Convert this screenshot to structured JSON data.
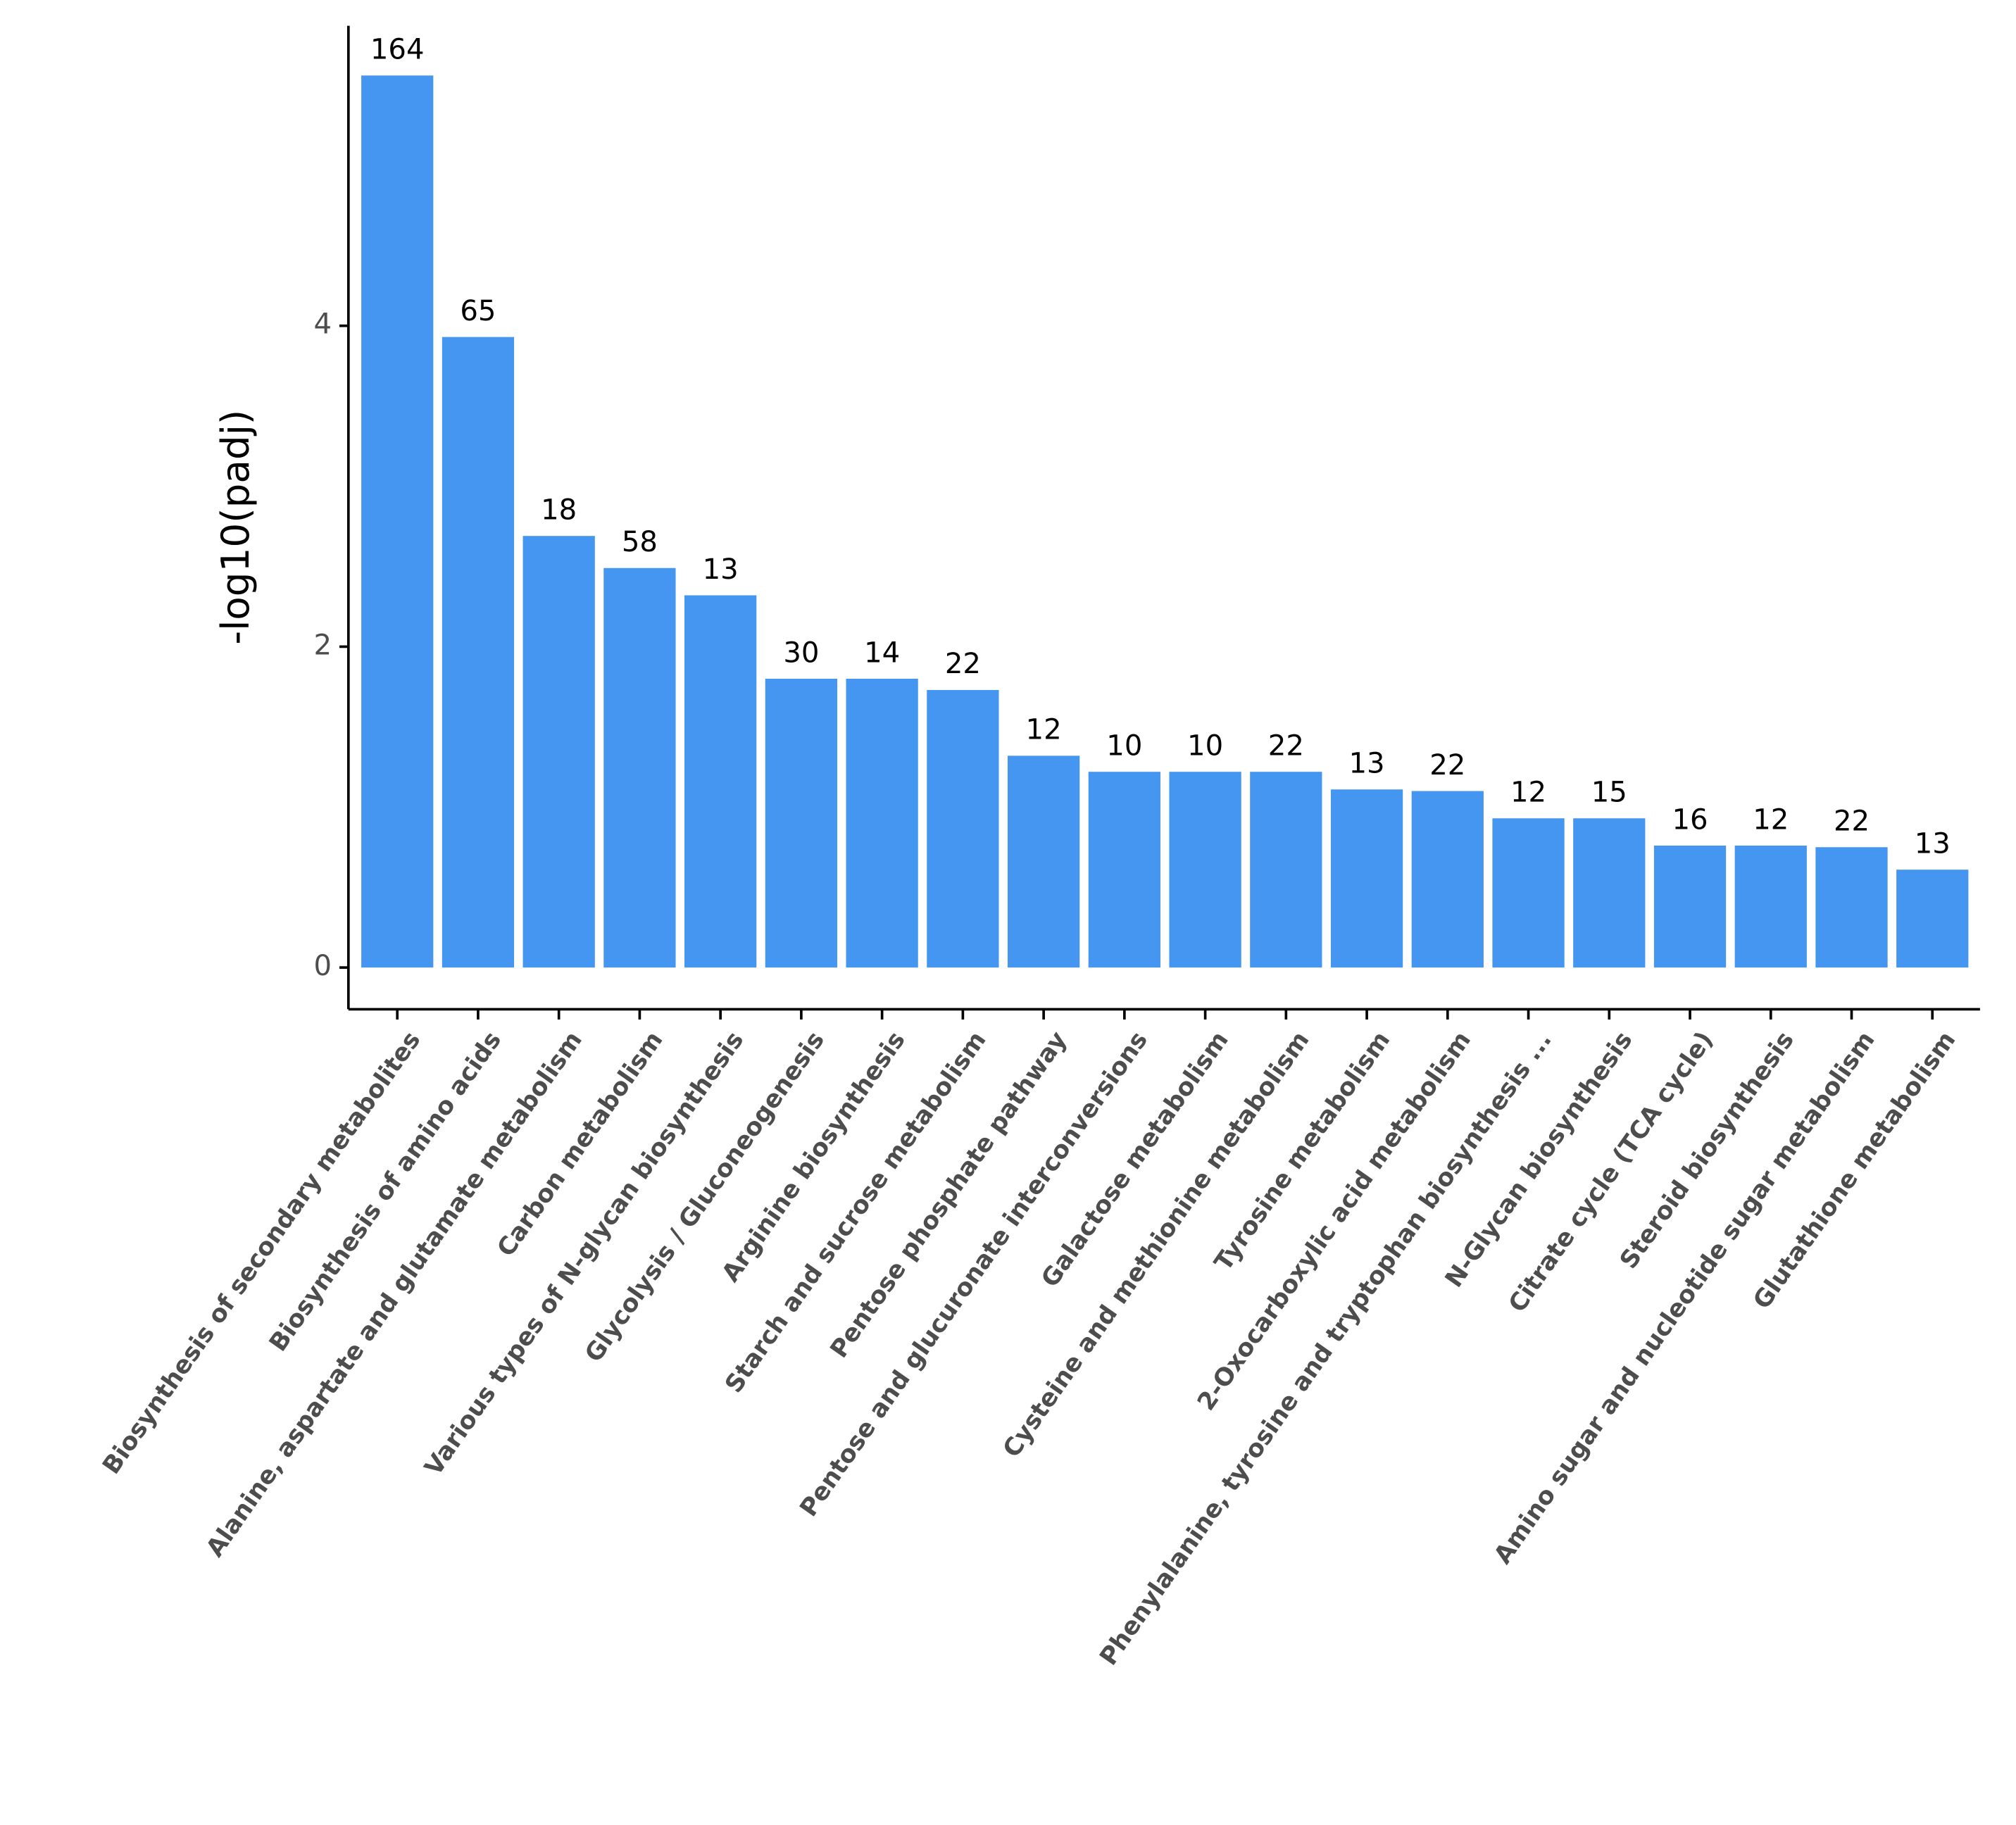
{
  "chart_data": {
    "type": "bar",
    "y_label": "-log10(padj)",
    "categories": [
      "Biosynthesis of secondary metabolites",
      "Biosynthesis of amino acids",
      "Alanine, aspartate and glutamate metabolism",
      "Carbon metabolism",
      "Various types of N-glycan biosynthesis",
      "Glycolysis / Gluconeogenesis",
      "Arginine biosynthesis",
      "Starch and sucrose metabolism",
      "Pentose phosphate pathway",
      "Pentose and glucuronate interconversions",
      "Galactose metabolism",
      "Cysteine and methionine metabolism",
      "Tyrosine metabolism",
      "2-Oxocarboxylic acid metabolism",
      "Phenylalanine, tyrosine and tryptophan biosynthesis ...",
      "N-Glycan biosynthesis",
      "Citrate cycle (TCA cycle)",
      "Steroid biosynthesis",
      "Amino sugar and nucleotide sugar metabolism",
      "Glutathione metabolism"
    ],
    "values": [
      5.56,
      3.93,
      2.69,
      2.49,
      2.32,
      1.8,
      1.8,
      1.73,
      1.32,
      1.22,
      1.22,
      1.22,
      1.11,
      1.1,
      0.93,
      0.93,
      0.76,
      0.76,
      0.75,
      0.61
    ],
    "counts": [
      164,
      65,
      18,
      58,
      13,
      30,
      14,
      22,
      12,
      10,
      10,
      22,
      13,
      22,
      12,
      15,
      16,
      12,
      22,
      13
    ],
    "color": "#4496f0",
    "ylim": [
      -0.26,
      5.87
    ],
    "yticks": [
      0,
      2,
      4
    ],
    "grid": false
  }
}
